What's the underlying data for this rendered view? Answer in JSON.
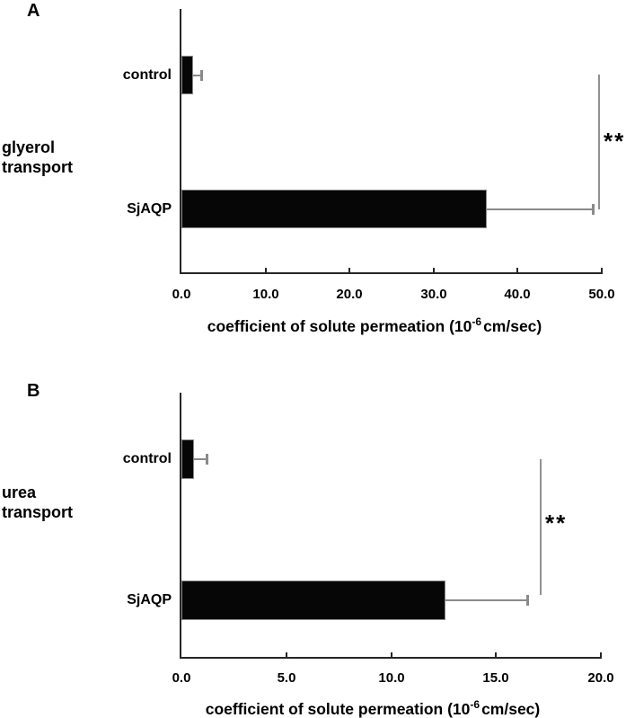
{
  "colors": {
    "bar_fill": "#060606",
    "bar_border": "#8a8a8a",
    "error_bar": "#8a8a8a",
    "bracket": "#919191",
    "axis": "#262626",
    "text": "#000000",
    "background": "#ffffff"
  },
  "chart_data": [
    {
      "type": "bar",
      "orientation": "horizontal",
      "panel_label": "A",
      "side_label_lines": [
        "glyerol",
        "transport"
      ],
      "title": "glyerol transport",
      "categories": [
        "control",
        "SjAQP"
      ],
      "values": [
        1.4,
        36.3
      ],
      "errors": [
        0.9,
        12.6
      ],
      "significance": "**",
      "xlim": [
        0,
        50
      ],
      "xticks": [
        0,
        10,
        20,
        30,
        40,
        50
      ],
      "xtick_labels": [
        "0.0",
        "10.0",
        "20.0",
        "30.0",
        "40.0",
        "50.0"
      ],
      "xlabel": "coefficient of solute permeation (10-6 cm/sec)",
      "xlabel_parts": {
        "pre": "coefficient of solute permeation (10",
        "sup": "-6",
        "post": "cm/sec)"
      },
      "grid": false,
      "legend": false
    },
    {
      "type": "bar",
      "orientation": "horizontal",
      "panel_label": "B",
      "side_label_lines": [
        "urea",
        "transport"
      ],
      "title": "urea transport",
      "categories": [
        "control",
        "SjAQP"
      ],
      "values": [
        0.6,
        12.6
      ],
      "errors": [
        0.6,
        3.9
      ],
      "significance": "**",
      "xlim": [
        0,
        20
      ],
      "xticks": [
        0,
        5,
        10,
        15,
        20
      ],
      "xtick_labels": [
        "0.0",
        "5.0",
        "10.0",
        "15.0",
        "20.0"
      ],
      "xlabel": "coefficient of solute permeation (10-6 cm/sec)",
      "xlabel_parts": {
        "pre": "coefficient of solute permeation (10",
        "sup": "-6",
        "post": "cm/sec)"
      },
      "grid": false,
      "legend": false
    }
  ]
}
